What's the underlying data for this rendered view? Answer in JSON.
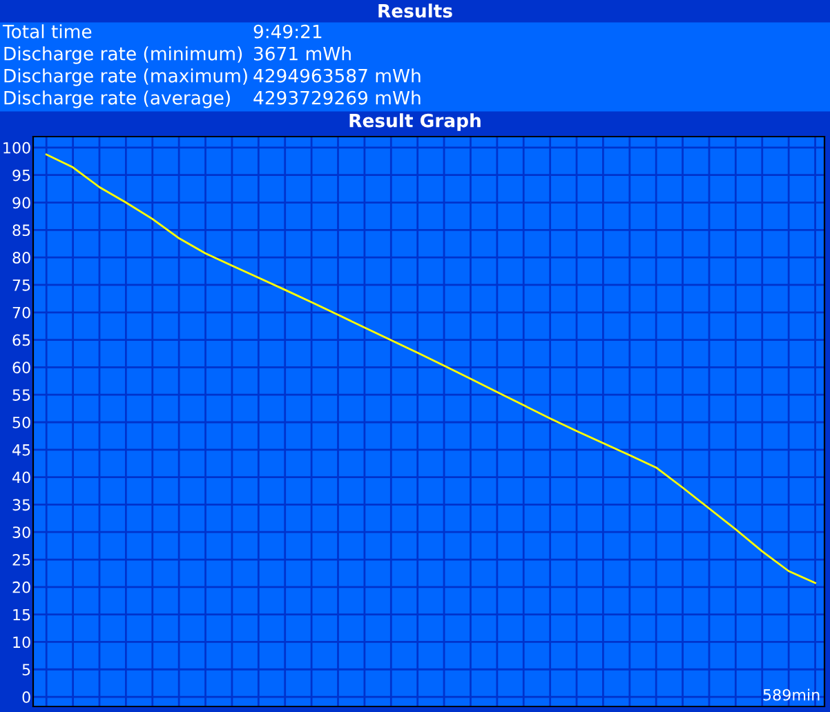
{
  "chart_data": {
    "type": "line",
    "title": "Results",
    "subtitle": "Result Graph",
    "annotations": [
      "Total time",
      "9:49:21",
      "Discharge rate (minimum)",
      "3671 mWh",
      "Discharge rate (maximum)",
      "4294963587 mWh",
      "Discharge rate (average)",
      "4293729269 mWh",
      "589min"
    ],
    "categories": [
      null,
      null,
      null,
      null,
      null,
      null,
      null,
      null,
      null,
      null,
      null,
      null,
      null,
      null,
      null,
      null,
      null,
      null,
      null,
      null,
      null,
      null,
      null,
      null,
      null,
      null,
      null,
      null,
      null,
      null
    ],
    "series": [
      {
        "color": "#ffff00",
        "values": [
          98.75,
          96.4,
          92.8,
          90,
          87,
          83.5,
          80.75,
          78.5,
          76.3,
          74.1,
          71.85,
          69.55,
          67.25,
          64.95,
          62.65,
          60.3,
          57.9,
          55.5,
          53.1,
          50.7,
          48.4,
          46.2,
          44,
          41.75,
          38.1,
          34.3,
          30.5,
          26.5,
          22.9,
          20.75
        ]
      }
    ],
    "ylim": [
      -1.75,
      102
    ],
    "yticks": [
      0,
      5,
      10,
      15,
      20,
      25,
      30,
      35,
      40,
      45,
      50,
      55,
      60,
      65,
      70,
      75,
      80,
      85,
      90,
      95,
      100
    ],
    "grid": true,
    "marker": "none",
    "line_style": "solid"
  }
}
